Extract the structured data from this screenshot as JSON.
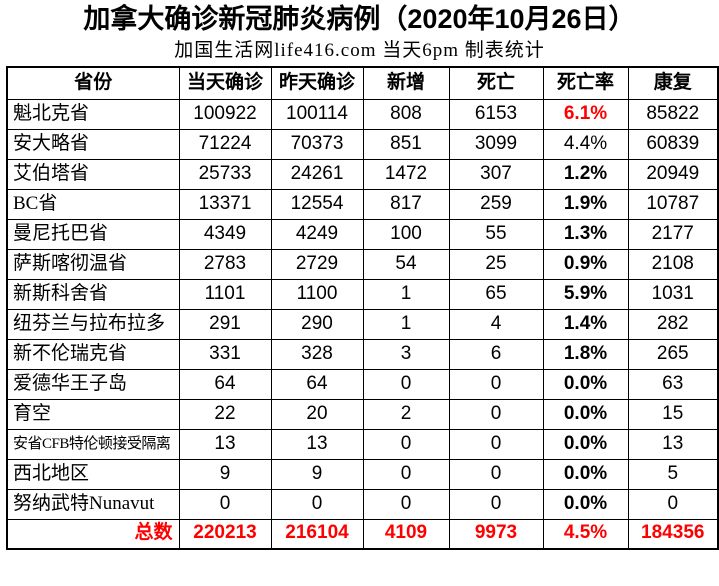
{
  "colors": {
    "accent_red": "#ff0000",
    "text": "#000000",
    "border": "#000000",
    "background": "#ffffff"
  },
  "chart_data": {
    "type": "table",
    "title": "加拿大确诊新冠肺炎病例（2020年10月26日）",
    "subtitle": "加国生活网life416.com 当天6pm 制表统计",
    "columns": [
      "省份",
      "当天确诊",
      "昨天确诊",
      "新增",
      "死亡",
      "死亡率",
      "康复"
    ],
    "rows": [
      {
        "province": "魁北克省",
        "today": "100922",
        "yesterday": "100114",
        "new": "808",
        "deaths": "6153",
        "rate": "6.1%",
        "recovered": "85822",
        "rate_style": "red-bold"
      },
      {
        "province": "安大略省",
        "today": "71224",
        "yesterday": "70373",
        "new": "851",
        "deaths": "3099",
        "rate": "4.4%",
        "recovered": "60839",
        "rate_style": "regular"
      },
      {
        "province": "艾伯塔省",
        "today": "25733",
        "yesterday": "24261",
        "new": "1472",
        "deaths": "307",
        "rate": "1.2%",
        "recovered": "20949",
        "rate_style": "bold"
      },
      {
        "province": "BC省",
        "today": "13371",
        "yesterday": "12554",
        "new": "817",
        "deaths": "259",
        "rate": "1.9%",
        "recovered": "10787",
        "rate_style": "bold"
      },
      {
        "province": "曼尼托巴省",
        "today": "4349",
        "yesterday": "4249",
        "new": "100",
        "deaths": "55",
        "rate": "1.3%",
        "recovered": "2177",
        "rate_style": "bold"
      },
      {
        "province": "萨斯喀彻温省",
        "today": "2783",
        "yesterday": "2729",
        "new": "54",
        "deaths": "25",
        "rate": "0.9%",
        "recovered": "2108",
        "rate_style": "bold"
      },
      {
        "province": "新斯科舍省",
        "today": "1101",
        "yesterday": "1100",
        "new": "1",
        "deaths": "65",
        "rate": "5.9%",
        "recovered": "1031",
        "rate_style": "bold"
      },
      {
        "province": "纽芬兰与拉布拉多",
        "today": "291",
        "yesterday": "290",
        "new": "1",
        "deaths": "4",
        "rate": "1.4%",
        "recovered": "282",
        "rate_style": "bold"
      },
      {
        "province": "新不伦瑞克省",
        "today": "331",
        "yesterday": "328",
        "new": "3",
        "deaths": "6",
        "rate": "1.8%",
        "recovered": "265",
        "rate_style": "bold"
      },
      {
        "province": "爱德华王子岛",
        "today": "64",
        "yesterday": "64",
        "new": "0",
        "deaths": "0",
        "rate": "0.0%",
        "recovered": "63",
        "rate_style": "bold"
      },
      {
        "province": "育空",
        "today": "22",
        "yesterday": "20",
        "new": "2",
        "deaths": "0",
        "rate": "0.0%",
        "recovered": "15",
        "rate_style": "bold"
      },
      {
        "province": "安省CFB特伦顿接受隔离",
        "today": "13",
        "yesterday": "13",
        "new": "0",
        "deaths": "0",
        "rate": "0.0%",
        "recovered": "13",
        "rate_style": "bold"
      },
      {
        "province": "西北地区",
        "today": "9",
        "yesterday": "9",
        "new": "0",
        "deaths": "0",
        "rate": "0.0%",
        "recovered": "5",
        "rate_style": "bold"
      },
      {
        "province": "努纳武特Nunavut",
        "today": "0",
        "yesterday": "0",
        "new": "0",
        "deaths": "0",
        "rate": "0.0%",
        "recovered": "0",
        "rate_style": "bold"
      }
    ],
    "total": {
      "label": "总数",
      "today": "220213",
      "yesterday": "216104",
      "new": "4109",
      "deaths": "9973",
      "rate": "4.5%",
      "recovered": "184356"
    }
  }
}
